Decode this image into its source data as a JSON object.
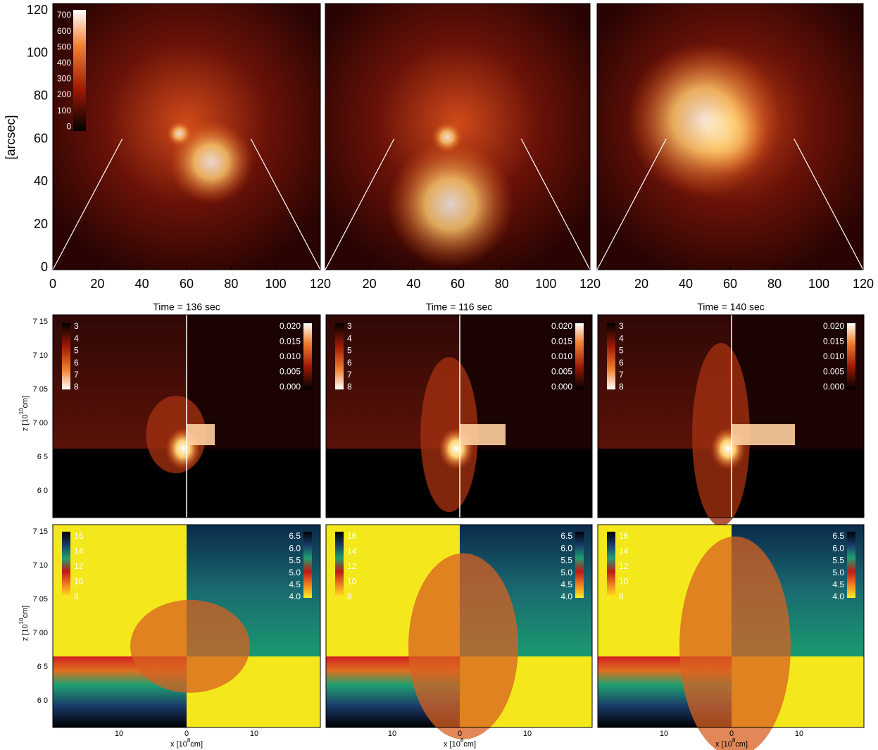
{
  "top_row": {
    "y_label": "[arcsec]",
    "yticks": [
      "0",
      "20",
      "40",
      "60",
      "80",
      "100",
      "120"
    ],
    "xticks": [
      [
        "0",
        "20",
        "40",
        "60",
        "80",
        "100",
        "120"
      ],
      [
        "20",
        "40",
        "60",
        "80",
        "100",
        "120"
      ],
      [
        "20",
        "40",
        "60",
        "80",
        "100",
        "120"
      ]
    ],
    "colorbar_ticks": [
      "700",
      "600",
      "500",
      "400",
      "300",
      "200",
      "100",
      "0"
    ]
  },
  "times": [
    "Time = 136 sec",
    "Time = 116 sec",
    "Time = 140 sec"
  ],
  "sim_axes": {
    "z_label": {
      "prefix": "z [10",
      "exp": "10",
      "suffix": "cm]"
    },
    "zticks": [
      "7 15",
      "7 10",
      "7 05",
      "7 00",
      "6 5",
      "6 0"
    ],
    "x_label": {
      "prefix": "x [10",
      "exp": "8",
      "suffix": "cm]"
    },
    "xticks": [
      "10",
      "0",
      "10"
    ]
  },
  "middle_row": {
    "left_colorbar": [
      "3",
      "4",
      "5",
      "6",
      "7",
      "8"
    ],
    "right_colorbar": [
      "0.020",
      "0.015",
      "0.010",
      "0.005",
      "0.000"
    ]
  },
  "bottom_row": {
    "left_colorbar": [
      "16",
      "14",
      "12",
      "10",
      "8"
    ],
    "right_colorbar": [
      "6.5",
      "6.0",
      "5.5",
      "5.0",
      "4.5",
      "4.0"
    ]
  }
}
